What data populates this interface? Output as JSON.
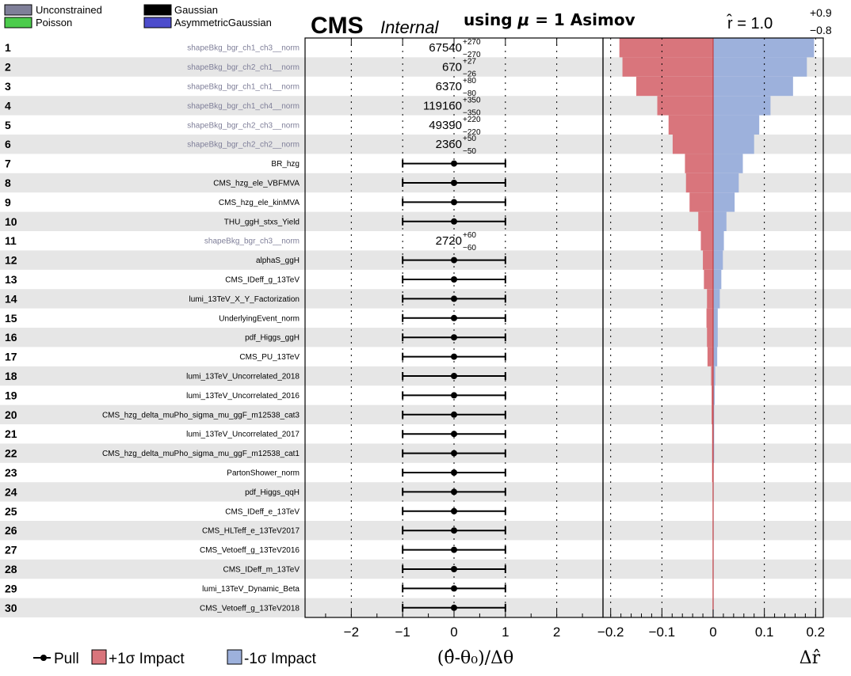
{
  "header": {
    "cms": "CMS",
    "internal": "Internal",
    "asimov_prefix": "using ",
    "asimov_mu": "μ",
    "asimov_suffix": " = 1 Asimov",
    "rhat_lhs": "r̂ = 1.0",
    "rhat_up": "+0.9",
    "rhat_down": "−0.8"
  },
  "legend_top": [
    {
      "label": "Unconstrained",
      "color": "#7f7f99"
    },
    {
      "label": "Gaussian",
      "color": "#000000"
    },
    {
      "label": "Poisson",
      "color": "#4ccc4c"
    },
    {
      "label": "AsymmetricGaussian",
      "color": "#4c4ccc"
    }
  ],
  "legend_bottom": {
    "pull": "Pull",
    "plus": "+1σ Impact",
    "minus": "-1σ Impact",
    "plus_color": "#d9757c",
    "minus_color": "#9db1dc"
  },
  "chart_data": {
    "type": "bar",
    "pull_panel": {
      "xlabel": "(θ̂-θ₀)/Δθ",
      "xlim": [
        -2.9,
        2.9
      ],
      "xticks": [
        -2,
        -1,
        0,
        1,
        2
      ]
    },
    "impact_panel": {
      "xlabel": "Δr̂",
      "xlim": [
        -0.215,
        0.215
      ],
      "xticks": [
        -0.2,
        -0.1,
        0,
        0.1,
        0.2
      ],
      "xtick_labels": [
        "−0.2",
        "−0.1",
        "0",
        "0.1",
        "0.2"
      ]
    },
    "parameters": [
      {
        "rank": "1",
        "name": "shapeBkg_bgr_ch1_ch3__norm",
        "type": "unconstrained",
        "value": "67540",
        "up": "+270",
        "down": "−270",
        "impact_plus": -0.183,
        "impact_minus": 0.197
      },
      {
        "rank": "2",
        "name": "shapeBkg_bgr_ch2_ch1__norm",
        "type": "unconstrained",
        "value": "670",
        "up": "+27",
        "down": "−26",
        "impact_plus": -0.177,
        "impact_minus": 0.183
      },
      {
        "rank": "3",
        "name": "shapeBkg_bgr_ch1_ch1__norm",
        "type": "unconstrained",
        "value": "6370",
        "up": "+80",
        "down": "−80",
        "impact_plus": -0.15,
        "impact_minus": 0.156
      },
      {
        "rank": "4",
        "name": "shapeBkg_bgr_ch1_ch4__norm",
        "type": "unconstrained",
        "value": "119160",
        "up": "+350",
        "down": "−350",
        "impact_plus": -0.109,
        "impact_minus": 0.112
      },
      {
        "rank": "5",
        "name": "shapeBkg_bgr_ch2_ch3__norm",
        "type": "unconstrained",
        "value": "49390",
        "up": "+220",
        "down": "−220",
        "impact_plus": -0.087,
        "impact_minus": 0.09
      },
      {
        "rank": "6",
        "name": "shapeBkg_bgr_ch2_ch2__norm",
        "type": "unconstrained",
        "value": "2360",
        "up": "+50",
        "down": "−50",
        "impact_plus": -0.079,
        "impact_minus": 0.08
      },
      {
        "rank": "7",
        "name": "BR_hzg",
        "type": "gaussian",
        "pull": 0,
        "pull_err": 1,
        "impact_plus": -0.055,
        "impact_minus": 0.058
      },
      {
        "rank": "8",
        "name": "CMS_hzg_ele_VBFMVA",
        "type": "gaussian",
        "pull": 0,
        "pull_err": 1,
        "impact_plus": -0.053,
        "impact_minus": 0.05
      },
      {
        "rank": "9",
        "name": "CMS_hzg_ele_kinMVA",
        "type": "gaussian",
        "pull": 0,
        "pull_err": 1,
        "impact_plus": -0.046,
        "impact_minus": 0.042
      },
      {
        "rank": "10",
        "name": "THU_ggH_stxs_Yield",
        "type": "gaussian",
        "pull": 0,
        "pull_err": 1,
        "impact_plus": -0.029,
        "impact_minus": 0.026
      },
      {
        "rank": "11",
        "name": "shapeBkg_bgr_ch3__norm",
        "type": "unconstrained",
        "value": "2720",
        "up": "+60",
        "down": "−60",
        "impact_plus": -0.024,
        "impact_minus": 0.021
      },
      {
        "rank": "12",
        "name": "alphaS_ggH",
        "type": "gaussian",
        "pull": 0,
        "pull_err": 1,
        "impact_plus": -0.02,
        "impact_minus": 0.019
      },
      {
        "rank": "13",
        "name": "CMS_IDeff_g_13TeV",
        "type": "gaussian",
        "pull": 0,
        "pull_err": 1,
        "impact_plus": -0.018,
        "impact_minus": 0.016
      },
      {
        "rank": "14",
        "name": "lumi_13TeV_X_Y_Factorization",
        "type": "gaussian",
        "pull": 0,
        "pull_err": 1,
        "impact_plus": -0.012,
        "impact_minus": 0.013
      },
      {
        "rank": "15",
        "name": "UnderlyingEvent_norm",
        "type": "gaussian",
        "pull": 0,
        "pull_err": 1,
        "impact_plus": -0.013,
        "impact_minus": 0.009
      },
      {
        "rank": "16",
        "name": "pdf_Higgs_ggH",
        "type": "gaussian",
        "pull": 0,
        "pull_err": 1,
        "impact_plus": -0.012,
        "impact_minus": 0.009
      },
      {
        "rank": "17",
        "name": "CMS_PU_13TeV",
        "type": "gaussian",
        "pull": 0,
        "pull_err": 1,
        "impact_plus": -0.011,
        "impact_minus": 0.008
      },
      {
        "rank": "18",
        "name": "lumi_13TeV_Uncorrelated_2018",
        "type": "gaussian",
        "pull": 0,
        "pull_err": 1,
        "impact_plus": -0.004,
        "impact_minus": 0.004
      },
      {
        "rank": "19",
        "name": "lumi_13TeV_Uncorrelated_2016",
        "type": "gaussian",
        "pull": 0,
        "pull_err": 1,
        "impact_plus": -0.003,
        "impact_minus": 0.003
      },
      {
        "rank": "20",
        "name": "CMS_hzg_delta_muPho_sigma_mu_ggF_m12538_cat3",
        "type": "gaussian",
        "pull": 0,
        "pull_err": 1,
        "impact_plus": -0.003,
        "impact_minus": 0.002
      },
      {
        "rank": "21",
        "name": "lumi_13TeV_Uncorrelated_2017",
        "type": "gaussian",
        "pull": 0,
        "pull_err": 1,
        "impact_plus": -0.002,
        "impact_minus": 0.002
      },
      {
        "rank": "22",
        "name": "CMS_hzg_delta_muPho_sigma_mu_ggF_m12538_cat1",
        "type": "gaussian",
        "pull": 0,
        "pull_err": 1,
        "impact_plus": -0.002,
        "impact_minus": 0.002
      },
      {
        "rank": "23",
        "name": "PartonShower_norm",
        "type": "gaussian",
        "pull": 0,
        "pull_err": 1,
        "impact_plus": -0.002,
        "impact_minus": 0.001
      },
      {
        "rank": "24",
        "name": "pdf_Higgs_qqH",
        "type": "gaussian",
        "pull": 0,
        "pull_err": 1,
        "impact_plus": -0.001,
        "impact_minus": 0.001
      },
      {
        "rank": "25",
        "name": "CMS_IDeff_e_13TeV",
        "type": "gaussian",
        "pull": 0,
        "pull_err": 1,
        "impact_plus": -0.001,
        "impact_minus": 0.001
      },
      {
        "rank": "26",
        "name": "CMS_HLTeff_e_13TeV2017",
        "type": "gaussian",
        "pull": 0,
        "pull_err": 1,
        "impact_plus": -0.001,
        "impact_minus": 0.001
      },
      {
        "rank": "27",
        "name": "CMS_Vetoeff_g_13TeV2016",
        "type": "gaussian",
        "pull": 0,
        "pull_err": 1,
        "impact_plus": -0.001,
        "impact_minus": 0.001
      },
      {
        "rank": "28",
        "name": "CMS_IDeff_m_13TeV",
        "type": "gaussian",
        "pull": 0,
        "pull_err": 1,
        "impact_plus": -0.001,
        "impact_minus": 0.001
      },
      {
        "rank": "29",
        "name": "lumi_13TeV_Dynamic_Beta",
        "type": "gaussian",
        "pull": 0,
        "pull_err": 1,
        "impact_plus": -0.001,
        "impact_minus": 0.001
      },
      {
        "rank": "30",
        "name": "CMS_Vetoeff_g_13TeV2018",
        "type": "gaussian",
        "pull": 0,
        "pull_err": 1,
        "impact_plus": -0.001,
        "impact_minus": 0.001
      }
    ]
  }
}
